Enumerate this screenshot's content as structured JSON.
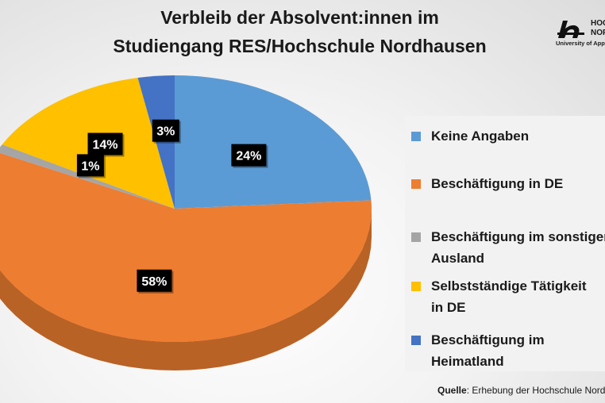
{
  "title": {
    "line1": "Verbleib der Absolvent:innen im",
    "line2": "Studiengang RES/Hochschule Nordhausen"
  },
  "logo": {
    "line1": "HOC",
    "line2": "NOR",
    "line3": "University of App"
  },
  "source": {
    "label": "Quelle",
    "text": ": Erhebung der Hochschule Nord"
  },
  "chart_data": {
    "type": "pie",
    "title": "Verbleib der Absolvent:innen im Studiengang RES/Hochschule Nordhausen",
    "slices": [
      {
        "label": "Keine Angaben",
        "value": 24,
        "display": "24%",
        "color": "#5b9bd5"
      },
      {
        "label": "Beschäftigung in DE",
        "value": 58,
        "display": "58%",
        "color": "#ed7d31"
      },
      {
        "label": "Beschäftigung im sonstigen Ausland",
        "value": 1,
        "display": "1%",
        "color": "#a5a5a5"
      },
      {
        "label": "Selbstständige Tätigkeit in DE",
        "value": 14,
        "display": "14%",
        "color": "#ffc000"
      },
      {
        "label": "Beschäftigung im Heimatland",
        "value": 3,
        "display": "3%",
        "color": "#4472c4"
      }
    ],
    "legend_position": "right"
  },
  "legend": {
    "items": [
      {
        "text": "Keine Angaben",
        "color": "#5b9bd5"
      },
      {
        "text": "Beschäftigung in DE",
        "color": "#ed7d31"
      },
      {
        "text": "Beschäftigung im sonstigen\nAusland",
        "color": "#a5a5a5"
      },
      {
        "text": "Selbstständige Tätigkeit\nin DE",
        "color": "#ffc000"
      },
      {
        "text": "Beschäftigung im\nHeimatland",
        "color": "#4472c4"
      }
    ]
  }
}
